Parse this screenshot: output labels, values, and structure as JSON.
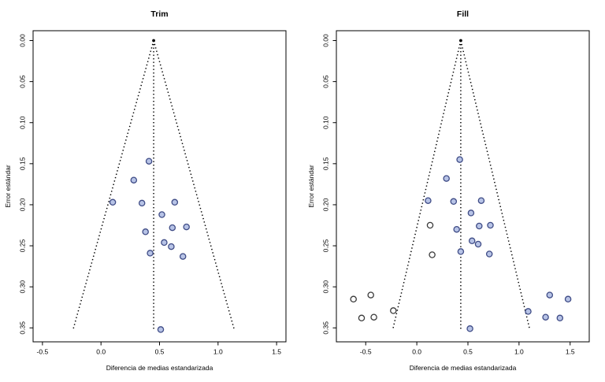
{
  "figure": {
    "background": "#ffffff",
    "colors": {
      "observed_fill": "#b7c3e6",
      "observed_stroke": "#3f4c86",
      "imputed_fill": "#ffffff",
      "imputed_stroke": "#3a3a3a",
      "funnel_line": "#000000",
      "axis": "#000000",
      "text": "#000000"
    }
  },
  "chart_data": [
    {
      "type": "scatter",
      "panel": "trim",
      "title": "Trim",
      "xlabel": "Diferencia de medias estandarizada",
      "ylabel": "Error estándar",
      "xlim": [
        -0.58,
        1.58
      ],
      "ylim": [
        -0.012,
        0.367
      ],
      "y_axis_inverted_downward": true,
      "grid": false,
      "xticks": [
        -0.5,
        0.0,
        0.5,
        1.0,
        1.5
      ],
      "xtick_labels": [
        "-0.5",
        "0.0",
        "0.5",
        "1.0",
        "1.5"
      ],
      "yticks": [
        0.0,
        0.05,
        0.1,
        0.15,
        0.2,
        0.25,
        0.3,
        0.35
      ],
      "ytick_labels": [
        "0.00",
        "0.05",
        "0.10",
        "0.15",
        "0.20",
        "0.25",
        "0.30",
        "0.35"
      ],
      "funnel": {
        "style": "dotted",
        "center_x": 0.45,
        "apex_y": 0.0,
        "bottom_y": 0.353,
        "left_x": -0.24,
        "right_x": 1.14
      },
      "series": [
        {
          "name": "observed",
          "marker": "circle",
          "points": [
            [
              0.41,
              0.147
            ],
            [
              0.28,
              0.17
            ],
            [
              0.1,
              0.197
            ],
            [
              0.35,
              0.198
            ],
            [
              0.63,
              0.197
            ],
            [
              0.52,
              0.212
            ],
            [
              0.61,
              0.228
            ],
            [
              0.73,
              0.227
            ],
            [
              0.38,
              0.233
            ],
            [
              0.54,
              0.246
            ],
            [
              0.6,
              0.251
            ],
            [
              0.42,
              0.259
            ],
            [
              0.7,
              0.263
            ],
            [
              0.51,
              0.352
            ]
          ]
        }
      ]
    },
    {
      "type": "scatter",
      "panel": "fill",
      "title": "Fill",
      "xlabel": "Diferencia de medias estandarizada",
      "ylabel": "Error estándar",
      "xlim": [
        -0.787,
        1.687
      ],
      "ylim": [
        -0.012,
        0.367
      ],
      "y_axis_inverted_downward": true,
      "grid": false,
      "xticks": [
        -0.5,
        0.0,
        0.5,
        1.0,
        1.5
      ],
      "xtick_labels": [
        "-0.5",
        "0.0",
        "0.5",
        "1.0",
        "1.5"
      ],
      "yticks": [
        0.0,
        0.05,
        0.1,
        0.15,
        0.2,
        0.25,
        0.3,
        0.35
      ],
      "ytick_labels": [
        "0.00",
        "0.05",
        "0.10",
        "0.15",
        "0.20",
        "0.25",
        "0.30",
        "0.35"
      ],
      "funnel": {
        "style": "dotted",
        "center_x": 0.43,
        "apex_y": 0.0,
        "bottom_y": 0.352,
        "left_x": -0.235,
        "right_x": 1.105
      },
      "series": [
        {
          "name": "observed",
          "marker": "circle",
          "points": [
            [
              0.42,
              0.145
            ],
            [
              0.29,
              0.168
            ],
            [
              0.11,
              0.195
            ],
            [
              0.36,
              0.196
            ],
            [
              0.63,
              0.195
            ],
            [
              0.53,
              0.21
            ],
            [
              0.61,
              0.226
            ],
            [
              0.72,
              0.225
            ],
            [
              0.39,
              0.23
            ],
            [
              0.54,
              0.244
            ],
            [
              0.6,
              0.248
            ],
            [
              0.43,
              0.257
            ],
            [
              0.71,
              0.26
            ],
            [
              0.52,
              0.351
            ],
            [
              1.09,
              0.33
            ],
            [
              1.26,
              0.337
            ],
            [
              1.3,
              0.31
            ],
            [
              1.4,
              0.338
            ],
            [
              1.48,
              0.315
            ]
          ]
        },
        {
          "name": "imputed",
          "marker": "circle-open",
          "points": [
            [
              -0.62,
              0.315
            ],
            [
              -0.54,
              0.338
            ],
            [
              -0.45,
              0.31
            ],
            [
              -0.42,
              0.337
            ],
            [
              -0.23,
              0.329
            ],
            [
              0.13,
              0.225
            ],
            [
              0.15,
              0.261
            ]
          ]
        }
      ]
    }
  ]
}
